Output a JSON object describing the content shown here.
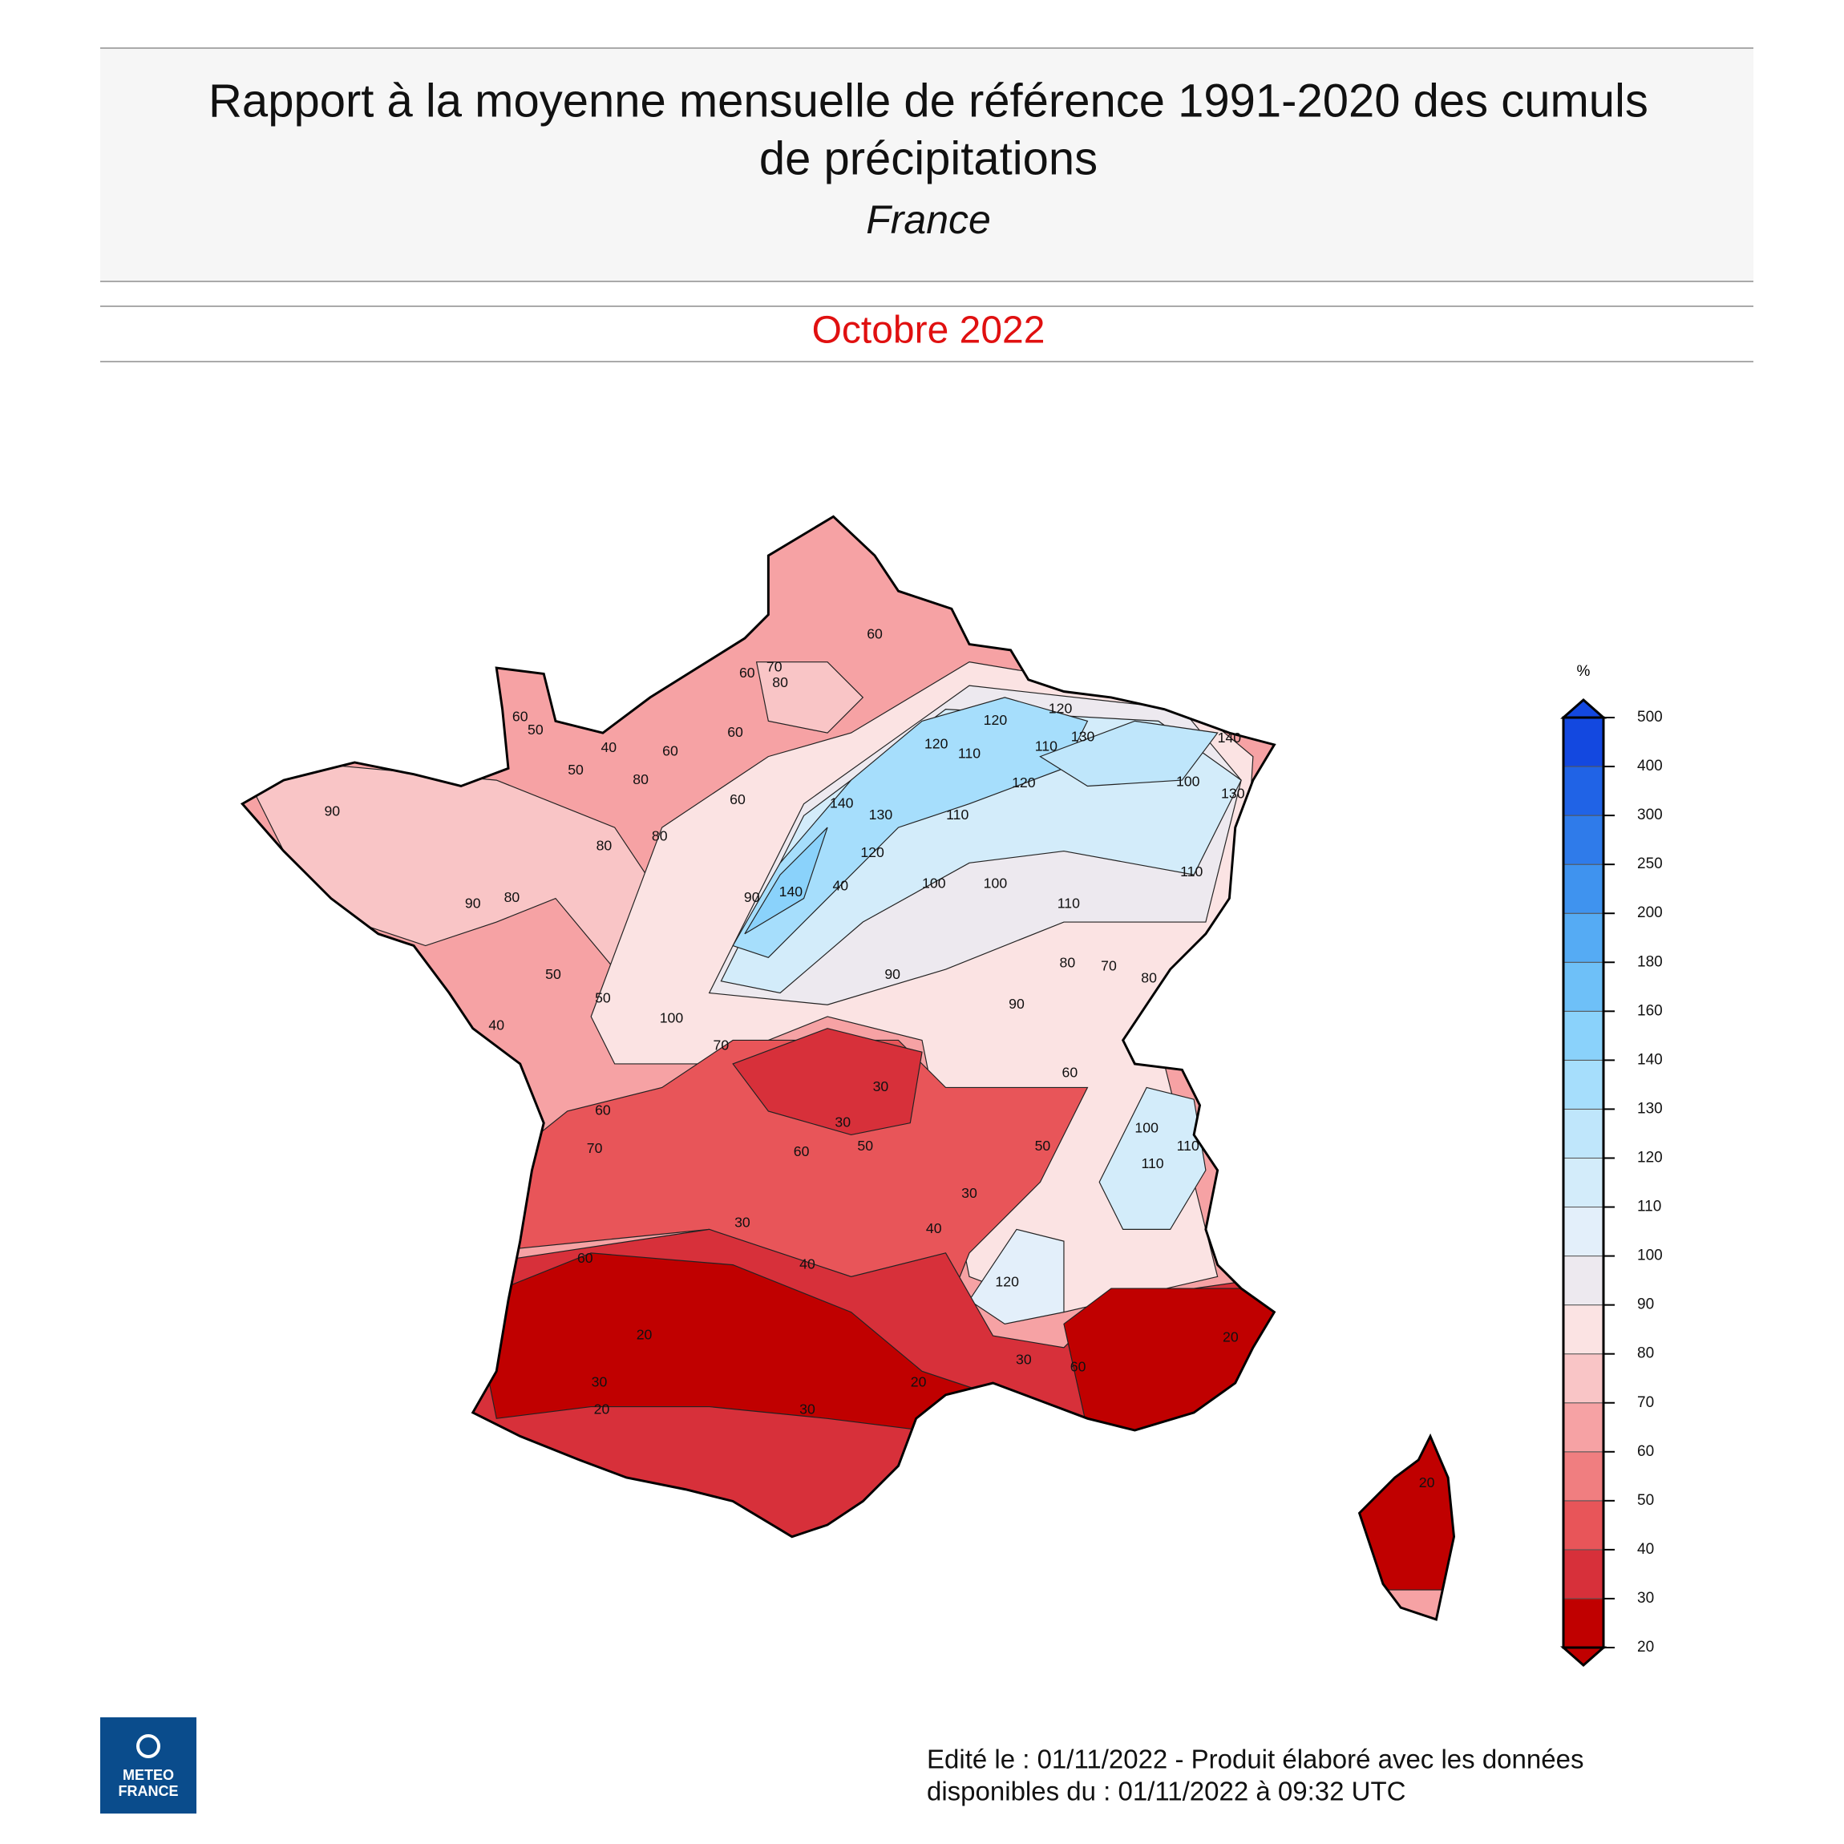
{
  "header": {
    "title_line1": "Rapport à la moyenne mensuelle de référence 1991-2020 des cumuls",
    "title_line2": "de précipitations",
    "subtitle": "France"
  },
  "period": "Octobre 2022",
  "legend": {
    "unit": "%",
    "ticks": [
      20,
      30,
      40,
      50,
      60,
      70,
      80,
      90,
      100,
      110,
      120,
      130,
      140,
      160,
      180,
      200,
      250,
      300,
      400,
      500
    ],
    "colors": [
      "#c00000",
      "#d7303a",
      "#e85559",
      "#f07e80",
      "#f6a2a4",
      "#f9c5c6",
      "#fbe3e3",
      "#ede9ef",
      "#e3effa",
      "#d3ecfa",
      "#bfe6fb",
      "#a6defc",
      "#8ad2fb",
      "#6ec0f8",
      "#55abf4",
      "#3f93ef",
      "#2f7bea",
      "#2063e6",
      "#1348e0"
    ]
  },
  "map": {
    "contour_labels": [
      70,
      60,
      80,
      60,
      40,
      50,
      60,
      80,
      50,
      60,
      90,
      90,
      80,
      80,
      80,
      60,
      60,
      120,
      110,
      120,
      130,
      120,
      140,
      110,
      120,
      110,
      130,
      140,
      120,
      100,
      100,
      110,
      90,
      90,
      80,
      70,
      100,
      70,
      50,
      50,
      40,
      60,
      70,
      30,
      30,
      50,
      60,
      50,
      60,
      30,
      30,
      40,
      60,
      40,
      120,
      20,
      30,
      20,
      30,
      20,
      30,
      60,
      20,
      20,
      110,
      110,
      100,
      110,
      100,
      130,
      80,
      90,
      140,
      40
    ]
  },
  "logo": {
    "line1": "METEO",
    "line2": "FRANCE"
  },
  "footer": {
    "line1": "Edité le : 01/11/2022 - Produit élaboré avec les données",
    "line2": "disponibles du : 01/11/2022 à 09:32 UTC"
  }
}
